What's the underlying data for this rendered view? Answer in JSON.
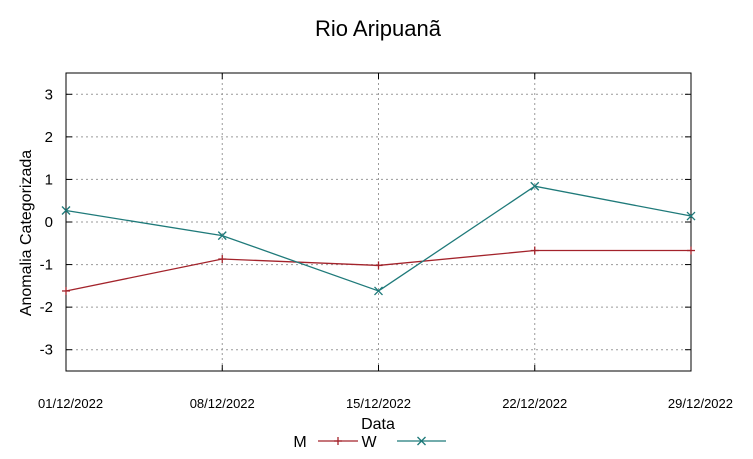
{
  "chart_data": {
    "type": "line",
    "title": "Rio Aripuanã",
    "xlabel": "Data",
    "ylabel": "Anomalia Categorizada",
    "categories": [
      "01/12/2022",
      "08/12/2022",
      "15/12/2022",
      "22/12/2022",
      "29/12/2022"
    ],
    "ylim": [
      -3.5,
      3.5
    ],
    "yticks": [
      -3,
      -2,
      -1,
      0,
      1,
      2,
      3
    ],
    "grid": true,
    "legend_position": "bottom",
    "series": [
      {
        "name": "M",
        "color": "#a3232b",
        "marker": "plus",
        "values": [
          -1.62,
          -0.87,
          -1.02,
          -0.67,
          -0.67
        ]
      },
      {
        "name": "W",
        "color": "#1f7a7a",
        "marker": "cross",
        "values": [
          0.27,
          -0.32,
          -1.62,
          0.84,
          0.14
        ]
      }
    ]
  }
}
